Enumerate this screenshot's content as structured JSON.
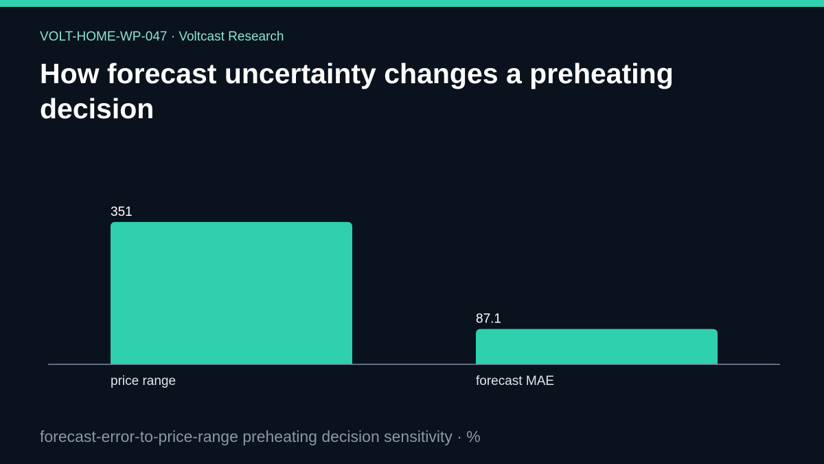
{
  "header": {
    "eyebrow": "VOLT-HOME-WP-047 · Voltcast Research",
    "title": "How forecast uncertainty changes a preheating decision"
  },
  "footer": {
    "caption": "forecast-error-to-price-range preheating decision sensitivity · %"
  },
  "colors": {
    "background": "#09121d",
    "accent": "#2fd0ad",
    "eyebrow": "#8de2cf",
    "axis": "#7d8ea3",
    "label": "#dfe5ec"
  },
  "chart_data": {
    "type": "bar",
    "title": "How forecast uncertainty changes a preheating decision",
    "categories": [
      "price range",
      "forecast MAE"
    ],
    "values": [
      351,
      87.1
    ],
    "value_labels": [
      "351",
      "87.1"
    ],
    "unit": "%",
    "ylim": [
      0,
      400
    ],
    "grid": false,
    "legend": "none"
  }
}
